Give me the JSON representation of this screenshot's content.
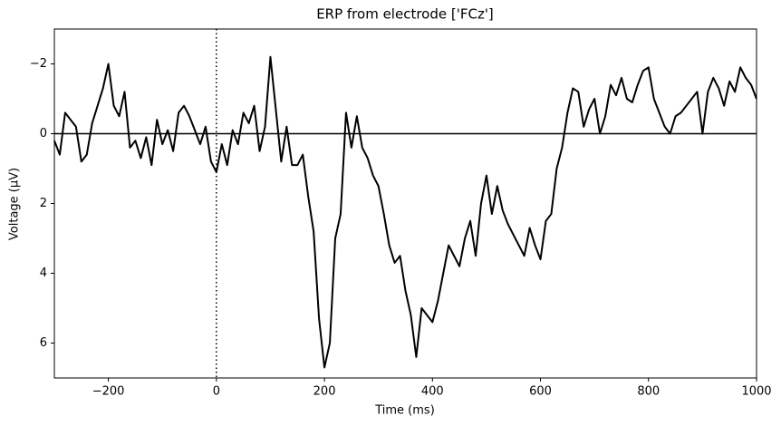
{
  "chart_data": {
    "type": "line",
    "title": "ERP from electrode ['FCz']",
    "x_label": "Time (ms)",
    "y_label": "Voltage (µV)",
    "color": "#000000",
    "line_width": 2,
    "xlim": [
      -300,
      1000
    ],
    "ylim": [
      7,
      -3
    ],
    "xticks": [
      {
        "value": -200,
        "label": "−200"
      },
      0,
      200,
      400,
      600,
      800,
      1000
    ],
    "yticks": [
      {
        "value": -2,
        "label": "−2"
      },
      0,
      2,
      4,
      6
    ],
    "reference_lines": {
      "x": [
        0
      ],
      "y": [
        0
      ]
    },
    "x": [
      -300,
      -290,
      -280,
      -270,
      -260,
      -250,
      -240,
      -230,
      -220,
      -210,
      -200,
      -190,
      -180,
      -170,
      -160,
      -150,
      -140,
      -130,
      -120,
      -110,
      -100,
      -90,
      -80,
      -70,
      -60,
      -50,
      -40,
      -30,
      -20,
      -10,
      0,
      10,
      20,
      30,
      40,
      50,
      60,
      70,
      80,
      90,
      100,
      110,
      120,
      130,
      140,
      150,
      160,
      170,
      180,
      190,
      200,
      210,
      220,
      230,
      240,
      250,
      260,
      270,
      280,
      290,
      300,
      310,
      320,
      330,
      340,
      350,
      360,
      370,
      380,
      390,
      400,
      410,
      420,
      430,
      440,
      450,
      460,
      470,
      480,
      490,
      500,
      510,
      520,
      530,
      540,
      550,
      560,
      570,
      580,
      590,
      600,
      610,
      620,
      630,
      640,
      650,
      660,
      670,
      680,
      690,
      700,
      710,
      720,
      730,
      740,
      750,
      760,
      770,
      780,
      790,
      800,
      810,
      820,
      830,
      840,
      850,
      860,
      870,
      880,
      890,
      900,
      910,
      920,
      930,
      940,
      950,
      960,
      970,
      980,
      990,
      1000
    ],
    "values": [
      0.2,
      0.6,
      -0.6,
      -0.4,
      -0.2,
      0.8,
      0.6,
      -0.3,
      -0.8,
      -1.3,
      -2.0,
      -0.8,
      -0.5,
      -1.2,
      0.4,
      0.2,
      0.7,
      0.1,
      0.9,
      -0.4,
      0.3,
      -0.1,
      0.5,
      -0.6,
      -0.8,
      -0.5,
      -0.1,
      0.3,
      -0.2,
      0.8,
      1.1,
      0.3,
      0.9,
      -0.1,
      0.3,
      -0.6,
      -0.3,
      -0.8,
      0.5,
      -0.2,
      -2.2,
      -0.7,
      0.8,
      -0.2,
      0.9,
      0.9,
      0.6,
      1.8,
      2.8,
      5.3,
      6.7,
      6.0,
      3.0,
      2.3,
      -0.6,
      0.4,
      -0.5,
      0.4,
      0.7,
      1.2,
      1.5,
      2.3,
      3.2,
      3.7,
      3.5,
      4.5,
      5.2,
      6.4,
      5.0,
      5.2,
      5.4,
      4.8,
      4.0,
      3.2,
      3.5,
      3.8,
      3.0,
      2.5,
      3.5,
      2.0,
      1.2,
      2.3,
      1.5,
      2.2,
      2.6,
      2.9,
      3.2,
      3.5,
      2.7,
      3.2,
      3.6,
      2.5,
      2.3,
      1.0,
      0.4,
      -0.6,
      -1.3,
      -1.2,
      -0.2,
      -0.7,
      -1.0,
      0.0,
      -0.5,
      -1.4,
      -1.1,
      -1.6,
      -1.0,
      -0.9,
      -1.4,
      -1.8,
      -1.9,
      -1.0,
      -0.6,
      -0.2,
      0.0,
      -0.5,
      -0.6,
      -0.8,
      -1.0,
      -1.2,
      0.0,
      -1.2,
      -1.6,
      -1.3,
      -0.8,
      -1.5,
      -1.2,
      -1.9,
      -1.6,
      -1.4,
      -1.0
    ]
  }
}
